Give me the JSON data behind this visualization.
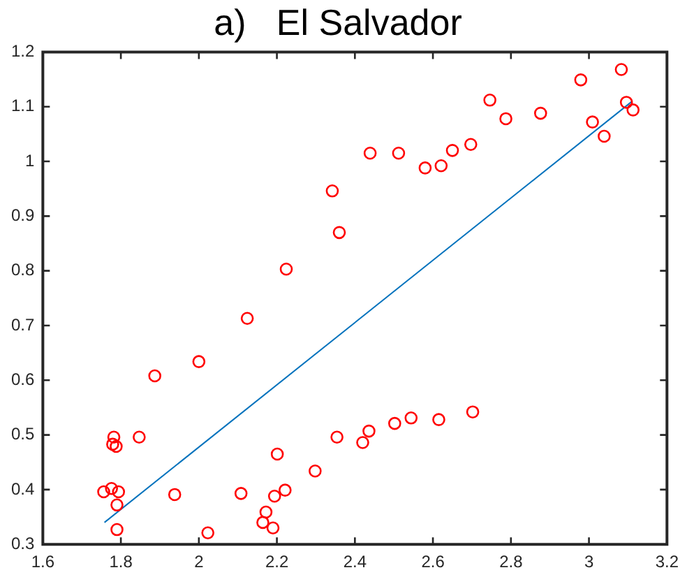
{
  "chart_data": {
    "type": "scatter",
    "title": "a)   El Salvador",
    "xlim": [
      1.6,
      3.2
    ],
    "xticks": [
      1.6,
      1.8,
      2,
      2.2,
      2.4,
      2.6,
      2.8,
      3,
      3.2
    ],
    "ylim": [
      0.3,
      1.2
    ],
    "yticks": [
      0.3,
      0.4,
      0.5,
      0.6,
      0.7,
      0.8,
      0.9,
      1,
      1.1,
      1.2
    ],
    "grid": false,
    "legend": false,
    "series": [
      {
        "color": "#ff0000",
        "marker": "circle",
        "x": [
          2.124,
          2.0,
          1.887,
          1.782,
          1.847,
          1.779,
          1.788,
          1.756,
          1.776,
          1.794,
          1.79,
          1.79,
          1.938,
          2.023,
          2.108,
          2.172,
          2.164,
          2.19,
          2.194,
          2.221,
          2.201,
          2.298,
          2.354,
          2.42,
          2.436,
          2.502,
          2.544,
          2.615,
          2.702,
          2.342,
          2.36,
          2.224,
          2.439,
          2.512,
          2.58,
          2.621,
          2.65,
          2.697,
          2.746,
          2.787,
          2.876,
          2.979,
          3.009,
          3.039,
          3.083,
          3.096,
          3.113
        ],
        "values": [
          0.713,
          0.634,
          0.608,
          0.496,
          0.496,
          0.483,
          0.479,
          0.396,
          0.402,
          0.396,
          0.372,
          0.327,
          0.391,
          0.321,
          0.393,
          0.359,
          0.34,
          0.33,
          0.388,
          0.399,
          0.465,
          0.434,
          0.496,
          0.486,
          0.507,
          0.521,
          0.531,
          0.528,
          0.542,
          0.946,
          0.87,
          0.803,
          1.015,
          1.015,
          0.988,
          0.992,
          1.02,
          1.031,
          1.112,
          1.078,
          1.088,
          1.149,
          1.072,
          1.046,
          1.168,
          1.108,
          1.094
        ]
      },
      {
        "type": "line",
        "color": "#0072bd",
        "marker": "none",
        "line_style": "solid",
        "x": [
          1.758,
          3.111
        ],
        "values": [
          0.34,
          1.11
        ]
      }
    ]
  }
}
